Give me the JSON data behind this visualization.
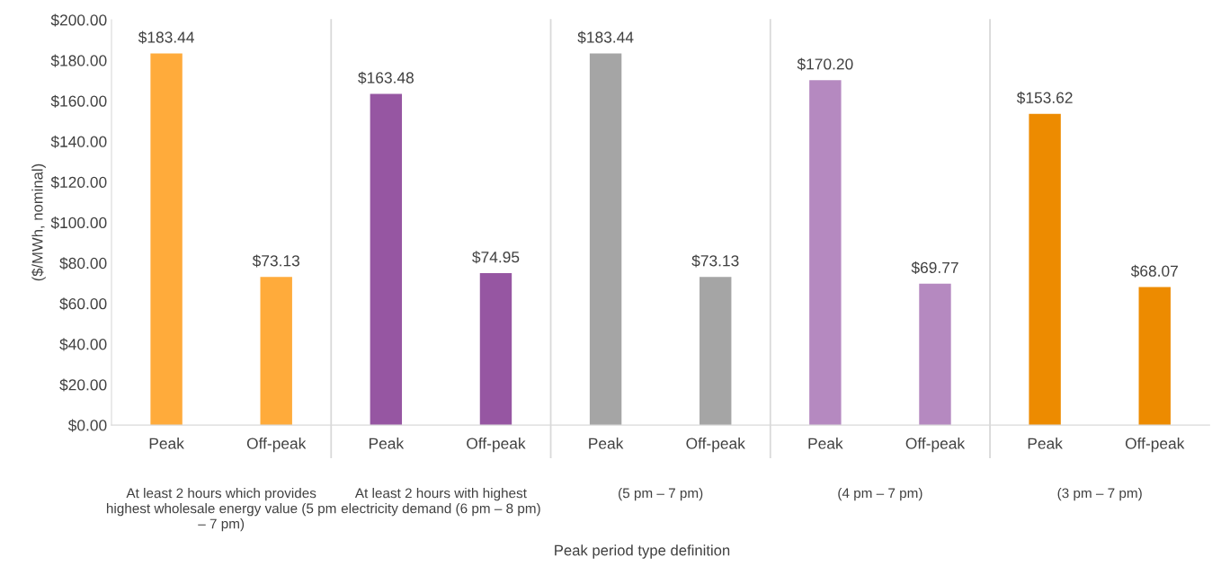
{
  "chart_data": {
    "type": "bar",
    "categories": [
      "Peak",
      "Off-peak",
      "Peak",
      "Off-peak",
      "Peak",
      "Off-peak",
      "Peak",
      "Off-peak",
      "Peak",
      "Off-peak"
    ],
    "values": [
      183.44,
      73.13,
      163.48,
      74.95,
      183.44,
      73.13,
      170.2,
      69.77,
      153.62,
      68.07
    ],
    "colors": [
      "#ffab3b",
      "#ffab3b",
      "#9656a2",
      "#9656a2",
      "#a5a5a5",
      "#a5a5a5",
      "#b589c0",
      "#b589c0",
      "#ed8b00",
      "#ed8b00"
    ],
    "value_labels": [
      "$183.44",
      "$73.13",
      "$163.48",
      "$74.95",
      "$183.44",
      "$73.13",
      "$170.20",
      "$69.77",
      "$153.62",
      "$68.07"
    ],
    "ylabel": "($/MWh, nominal)",
    "ylim": [
      0,
      200
    ],
    "yticks": [
      {
        "value": 0,
        "label": "$0.00"
      },
      {
        "value": 20,
        "label": "$20.00"
      },
      {
        "value": 40,
        "label": "$40.00"
      },
      {
        "value": 60,
        "label": "$60.00"
      },
      {
        "value": 80,
        "label": "$80.00"
      },
      {
        "value": 100,
        "label": "$100.00"
      },
      {
        "value": 120,
        "label": "$120.00"
      },
      {
        "value": 140,
        "label": "$140.00"
      },
      {
        "value": 160,
        "label": "$160.00"
      },
      {
        "value": 180,
        "label": "$180.00"
      },
      {
        "value": 200,
        "label": "$200.00"
      }
    ],
    "annotations": [
      "At least 2 hours which provides highest wholesale energy value (5 pm – 7 pm)",
      "At least 2 hours with highest electricity demand (6 pm – 8 pm)",
      "(5 pm – 7 pm)",
      "(4 pm – 7 pm)",
      "(3 pm – 7 pm)",
      "Peak period type definition"
    ],
    "grid": false
  }
}
